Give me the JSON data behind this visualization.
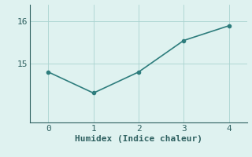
{
  "x": [
    0,
    1,
    2,
    3,
    4
  ],
  "y": [
    14.8,
    14.3,
    14.8,
    15.55,
    15.9
  ],
  "xlabel": "Humidex (Indice chaleur)",
  "line_color": "#2e7d7d",
  "background_color": "#dff2f0",
  "grid_color": "#aad4d0",
  "axis_color": "#2e6060",
  "tick_color": "#2e6060",
  "yticks": [
    15,
    16
  ],
  "ylim": [
    13.6,
    16.4
  ],
  "xlim": [
    -0.4,
    4.4
  ],
  "xticks": [
    0,
    1,
    2,
    3,
    4
  ],
  "marker": "o",
  "marker_size": 3,
  "linewidth": 1.2,
  "xlabel_fontsize": 8,
  "tick_fontsize": 8
}
